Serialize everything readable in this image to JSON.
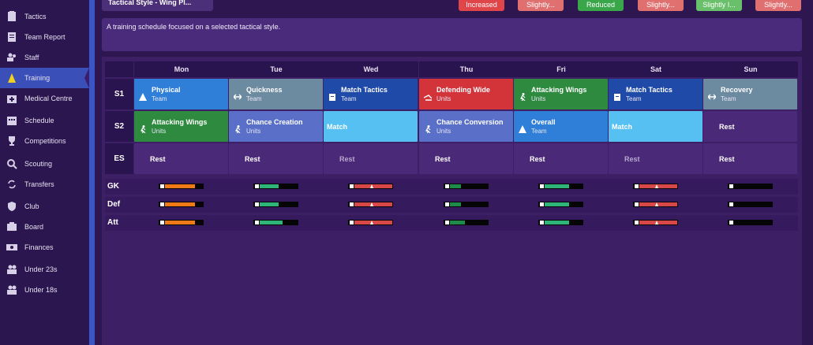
{
  "top": {
    "dropdown": "Tactical Style - Wing Pl...",
    "pills": [
      {
        "label": "Increased",
        "color": "#e0454a"
      },
      {
        "label": "Slightly...",
        "color": "#e07070"
      },
      {
        "label": "Reduced",
        "color": "#3aa64a"
      },
      {
        "label": "Slightly...",
        "color": "#e07070"
      },
      {
        "label": "Slightly I...",
        "color": "#6ac06a"
      },
      {
        "label": "Slightly...",
        "color": "#e07070"
      }
    ]
  },
  "description": "A training schedule focused on a selected tactical style.",
  "sidebar": {
    "items": [
      {
        "label": "Tactics",
        "icon": "clipboard-icon"
      },
      {
        "label": "Team Report",
        "icon": "report-icon"
      },
      {
        "label": "Staff",
        "icon": "staff-icon"
      },
      {
        "label": "Training",
        "icon": "cone-icon",
        "active": true
      },
      {
        "label": "Medical Centre",
        "icon": "medical-icon"
      },
      {
        "label": "Schedule",
        "icon": "calendar-icon"
      },
      {
        "label": "Competitions",
        "icon": "trophy-icon"
      },
      {
        "label": "Scouting",
        "icon": "search-icon"
      },
      {
        "label": "Transfers",
        "icon": "transfer-icon"
      },
      {
        "label": "Club",
        "icon": "shield-icon"
      },
      {
        "label": "Board",
        "icon": "board-icon"
      },
      {
        "label": "Finances",
        "icon": "money-icon"
      },
      {
        "label": "Under 23s",
        "icon": "youth-icon"
      },
      {
        "label": "Under 18s",
        "icon": "youth-icon"
      }
    ]
  },
  "days": [
    "Mon",
    "Tue",
    "Wed",
    "Thu",
    "Fri",
    "Sat",
    "Sun"
  ],
  "rows": [
    "S1",
    "S2",
    "ES"
  ],
  "sessions": {
    "S1": [
      {
        "name": "Physical",
        "sub": "Team",
        "color": "#2f7fd8",
        "icon": "cone"
      },
      {
        "name": "Quickness",
        "sub": "Team",
        "color": "#6c8aa0",
        "icon": "arrows"
      },
      {
        "name": "Match Tactics",
        "sub": "Team",
        "color": "#1f4aa8",
        "icon": "board"
      },
      {
        "name": "Defending Wide",
        "sub": "Units",
        "color": "#d2343a",
        "icon": "tackle"
      },
      {
        "name": "Attacking Wings",
        "sub": "Units",
        "color": "#2d8a3e",
        "icon": "runner"
      },
      {
        "name": "Match Tactics",
        "sub": "Team",
        "color": "#1f4aa8",
        "icon": "board"
      },
      {
        "name": "Recovery",
        "sub": "Team",
        "color": "#6c8aa0",
        "icon": "arrows"
      }
    ],
    "S2": [
      {
        "name": "Attacking Wings",
        "sub": "Units",
        "color": "#2d8a3e",
        "icon": "runner"
      },
      {
        "name": "Chance Creation",
        "sub": "Units",
        "color": "#5a6fc8",
        "icon": "runner"
      },
      {
        "name": "Match",
        "sub": "",
        "color": "#56c0f2",
        "icon": "none"
      },
      {
        "name": "Chance Conversion",
        "sub": "Units",
        "color": "#5a6fc8",
        "icon": "runner"
      },
      {
        "name": "Overall",
        "sub": "Team",
        "color": "#2f7fd8",
        "icon": "cone"
      },
      {
        "name": "Match",
        "sub": "",
        "color": "#56c0f2",
        "icon": "none"
      },
      {
        "name": "Rest",
        "sub": "",
        "color": "#4a2a78",
        "icon": "none"
      }
    ],
    "ES": [
      {
        "name": "Rest",
        "dim": false
      },
      {
        "name": "Rest",
        "dim": false
      },
      {
        "name": "Rest",
        "dim": true
      },
      {
        "name": "Rest",
        "dim": false
      },
      {
        "name": "Rest",
        "dim": false
      },
      {
        "name": "Rest",
        "dim": true
      },
      {
        "name": "Rest",
        "dim": false
      }
    ]
  },
  "load_rows": [
    {
      "label": "GK",
      "levels": [
        {
          "fill": 0.8,
          "color": "#f07a18"
        },
        {
          "fill": 0.5,
          "color": "#2fb47a"
        },
        {
          "fill": 1.0,
          "color": "#d84848"
        },
        {
          "fill": 0.3,
          "color": "#1f8a4a"
        },
        {
          "fill": 0.65,
          "color": "#2fb47a"
        },
        {
          "fill": 1.0,
          "color": "#d84848"
        },
        {
          "fill": 0.0,
          "color": "#000000"
        }
      ]
    },
    {
      "label": "Def",
      "levels": [
        {
          "fill": 0.8,
          "color": "#f07a18"
        },
        {
          "fill": 0.5,
          "color": "#2fb47a"
        },
        {
          "fill": 1.0,
          "color": "#d84848"
        },
        {
          "fill": 0.3,
          "color": "#1f8a4a"
        },
        {
          "fill": 0.65,
          "color": "#2fb47a"
        },
        {
          "fill": 1.0,
          "color": "#d84848"
        },
        {
          "fill": 0.0,
          "color": "#000000"
        }
      ]
    },
    {
      "label": "Att",
      "levels": [
        {
          "fill": 0.8,
          "color": "#f07a18"
        },
        {
          "fill": 0.6,
          "color": "#2fb47a"
        },
        {
          "fill": 1.0,
          "color": "#d84848"
        },
        {
          "fill": 0.4,
          "color": "#1f8a4a"
        },
        {
          "fill": 0.65,
          "color": "#2fb47a"
        },
        {
          "fill": 1.0,
          "color": "#d84848"
        },
        {
          "fill": 0.0,
          "color": "#000000"
        }
      ]
    }
  ]
}
